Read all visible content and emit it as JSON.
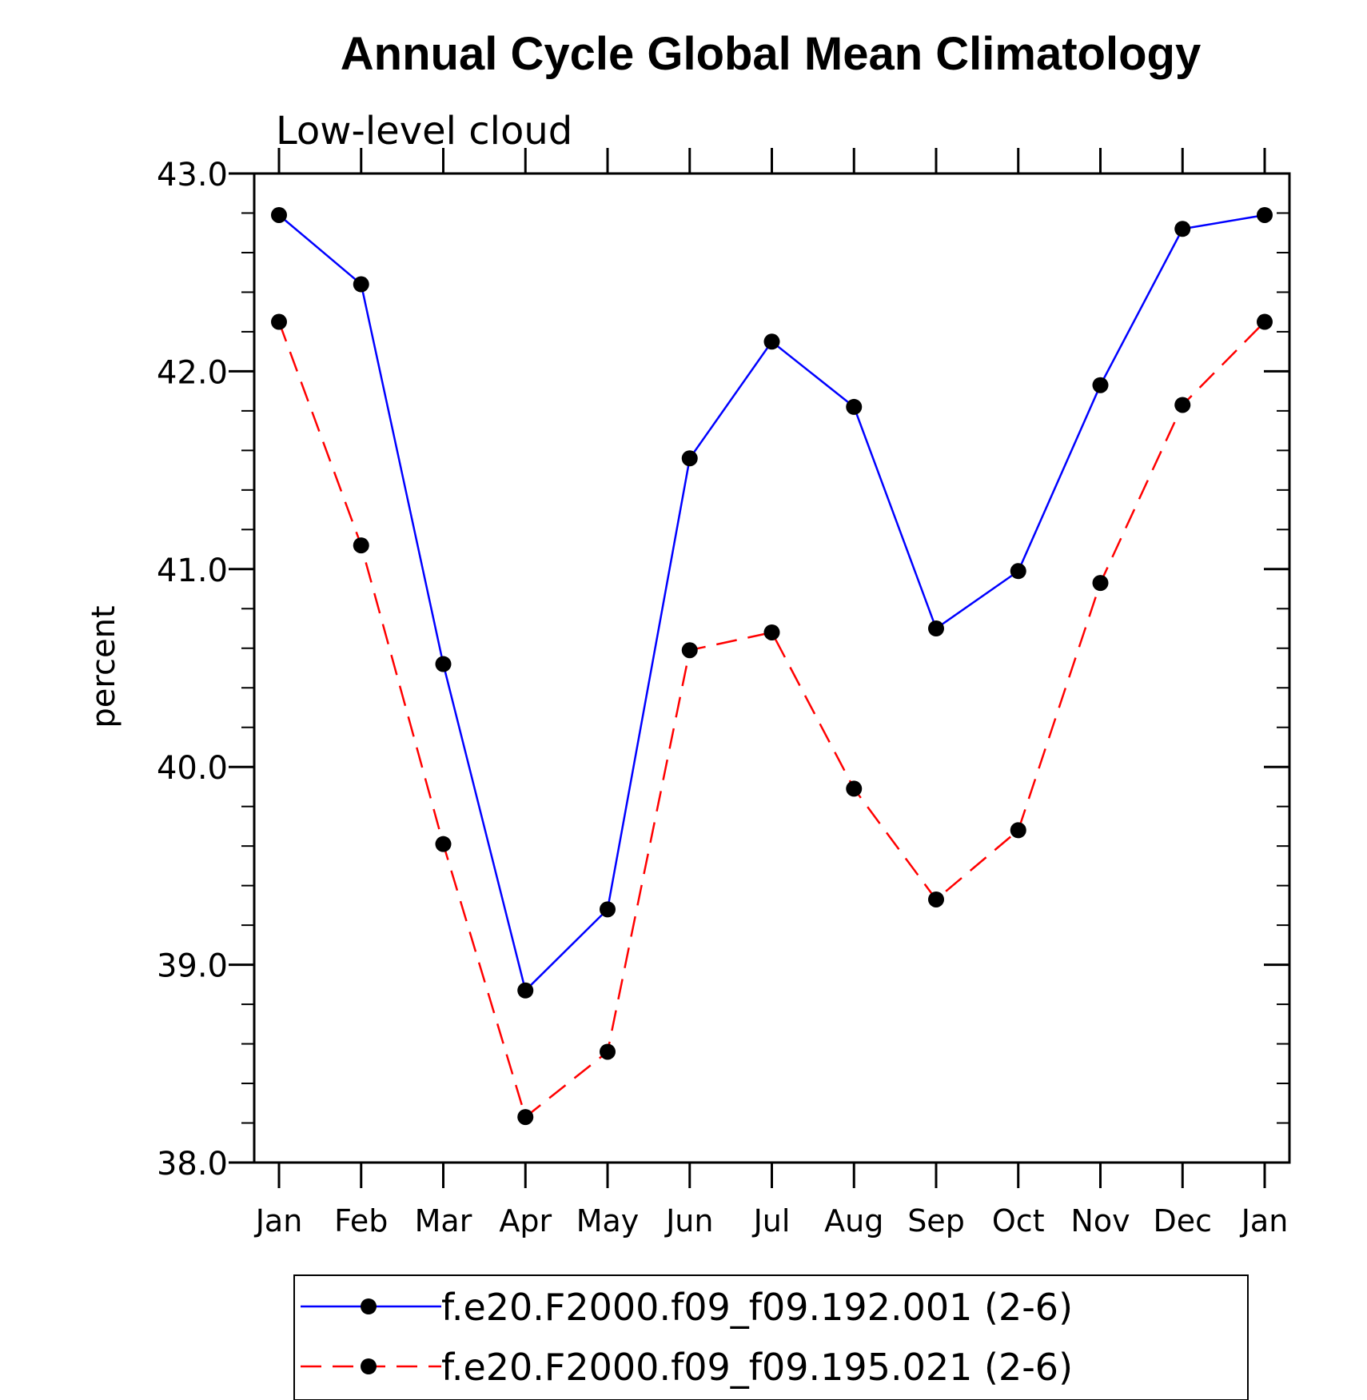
{
  "chart_data": {
    "type": "line",
    "title": "Annual Cycle Global Mean Climatology",
    "subtitle": "Low-level cloud",
    "ylabel": "percent",
    "xlabel": "",
    "categories": [
      "Jan",
      "Feb",
      "Mar",
      "Apr",
      "May",
      "Jun",
      "Jul",
      "Aug",
      "Sep",
      "Oct",
      "Nov",
      "Dec",
      "Jan"
    ],
    "ylim": [
      38.0,
      43.0
    ],
    "yticks": [
      "38.0",
      "39.0",
      "40.0",
      "41.0",
      "42.0",
      "43.0"
    ],
    "grid": false,
    "legend_position": "bottom",
    "series": [
      {
        "name": "f.e20.F2000.f09_f09.192.001 (2-6)",
        "color": "#0000ff",
        "dash": "solid",
        "marker": "filled-circle",
        "values": [
          42.79,
          42.44,
          40.52,
          38.87,
          39.28,
          41.56,
          42.15,
          41.82,
          40.7,
          40.99,
          41.93,
          42.72,
          42.79
        ]
      },
      {
        "name": "f.e20.F2000.f09_f09.195.021 (2-6)",
        "color": "#ff0000",
        "dash": "dashed",
        "marker": "filled-circle",
        "values": [
          42.25,
          41.12,
          39.61,
          38.23,
          38.56,
          40.59,
          40.68,
          39.89,
          39.33,
          39.68,
          40.93,
          41.83,
          42.25
        ]
      }
    ]
  }
}
